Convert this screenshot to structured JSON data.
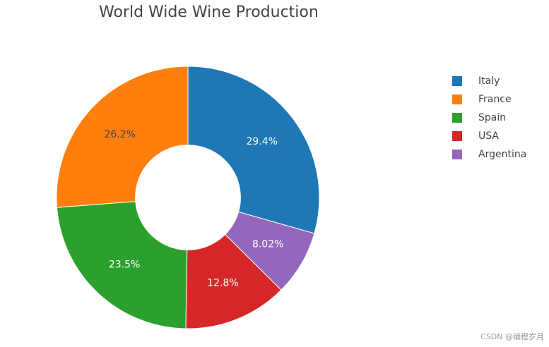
{
  "chart_data": {
    "type": "pie",
    "title": "World Wide Wine Production",
    "categories": [
      "Italy",
      "France",
      "Spain",
      "USA",
      "Argentina"
    ],
    "values": [
      29.4,
      26.2,
      23.5,
      12.8,
      8.02
    ],
    "value_labels": [
      "29.4%",
      "26.2%",
      "23.5%",
      "12.8%",
      "8.02%"
    ],
    "colors": [
      "#1f77b4",
      "#ff7f0e",
      "#2ca02c",
      "#d62728",
      "#9467bd"
    ],
    "label_colors": [
      "#ffffff",
      "#444444",
      "#ffffff",
      "#ffffff",
      "#ffffff"
    ],
    "hole": 0.4,
    "legend": "top-right",
    "watermark": "CSDN @编程岁月"
  }
}
